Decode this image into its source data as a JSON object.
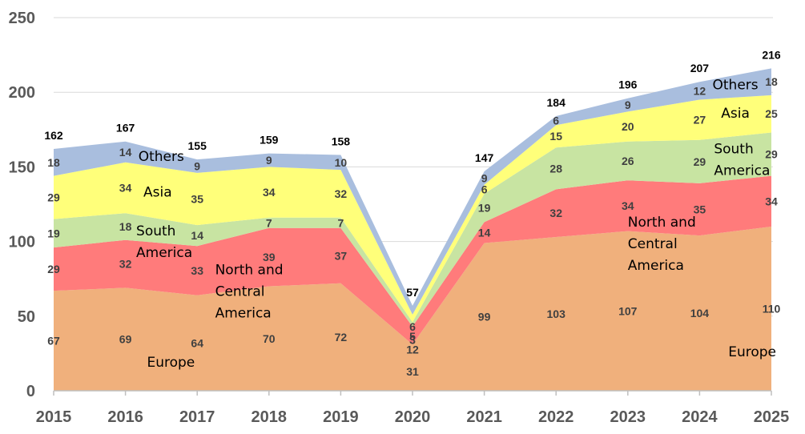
{
  "chart_data": {
    "type": "area",
    "stacked": true,
    "title": "",
    "xlabel": "",
    "ylabel": "",
    "x": [
      "2015",
      "2016",
      "2017",
      "2018",
      "2019",
      "2020",
      "2021",
      "2022",
      "2023",
      "2024",
      "2025"
    ],
    "ylim": [
      0,
      250
    ],
    "yticks": [
      "0",
      "50",
      "100",
      "150",
      "200",
      "250"
    ],
    "grid": true,
    "series": [
      {
        "name": "Europe",
        "color": "#F0B07C",
        "values": [
          67,
          69,
          64,
          70,
          72,
          31,
          99,
          103,
          107,
          104,
          110
        ]
      },
      {
        "name": "North and Central America",
        "color": "#FF7B7B",
        "values": [
          29,
          32,
          33,
          39,
          37,
          12,
          14,
          32,
          34,
          35,
          34
        ]
      },
      {
        "name": "South America",
        "color": "#C8E4A2",
        "values": [
          19,
          18,
          14,
          7,
          7,
          3,
          19,
          28,
          26,
          29,
          29
        ]
      },
      {
        "name": "Asia",
        "color": "#FFFF7A",
        "values": [
          29,
          34,
          35,
          34,
          32,
          5,
          6,
          15,
          20,
          27,
          25
        ]
      },
      {
        "name": "Others",
        "color": "#A9BEDE",
        "values": [
          18,
          14,
          9,
          9,
          10,
          6,
          9,
          6,
          9,
          12,
          18
        ]
      }
    ],
    "totals": [
      "162",
      "167",
      "155",
      "159",
      "158",
      "57",
      "147",
      "184",
      "196",
      "207",
      "216"
    ],
    "series_labels": [
      {
        "series": "Europe",
        "lines": [
          "Europe"
        ],
        "x": 2016.3,
        "y": 16
      },
      {
        "series": "Europe",
        "lines": [
          "Europe"
        ],
        "x": 2024.4,
        "y": 23
      },
      {
        "series": "North and Central America",
        "lines": [
          "North and",
          "Central",
          "America"
        ],
        "x": 2017.25,
        "y": 78
      },
      {
        "series": "North and Central America",
        "lines": [
          "North and",
          "Central",
          "America"
        ],
        "x": 2023.0,
        "y": 110
      },
      {
        "series": "South America",
        "lines": [
          "South",
          "America"
        ],
        "x": 2016.15,
        "y": 104
      },
      {
        "series": "South America",
        "lines": [
          "South",
          "America"
        ],
        "x": 2024.2,
        "y": 159
      },
      {
        "series": "Asia",
        "lines": [
          "Asia"
        ],
        "x": 2016.25,
        "y": 130
      },
      {
        "series": "Asia",
        "lines": [
          "Asia"
        ],
        "x": 2024.3,
        "y": 183
      },
      {
        "series": "Others",
        "lines": [
          "Others"
        ],
        "x": 2016.18,
        "y": 154
      },
      {
        "series": "Others",
        "lines": [
          "Others"
        ],
        "x": 2024.18,
        "y": 202
      }
    ]
  }
}
